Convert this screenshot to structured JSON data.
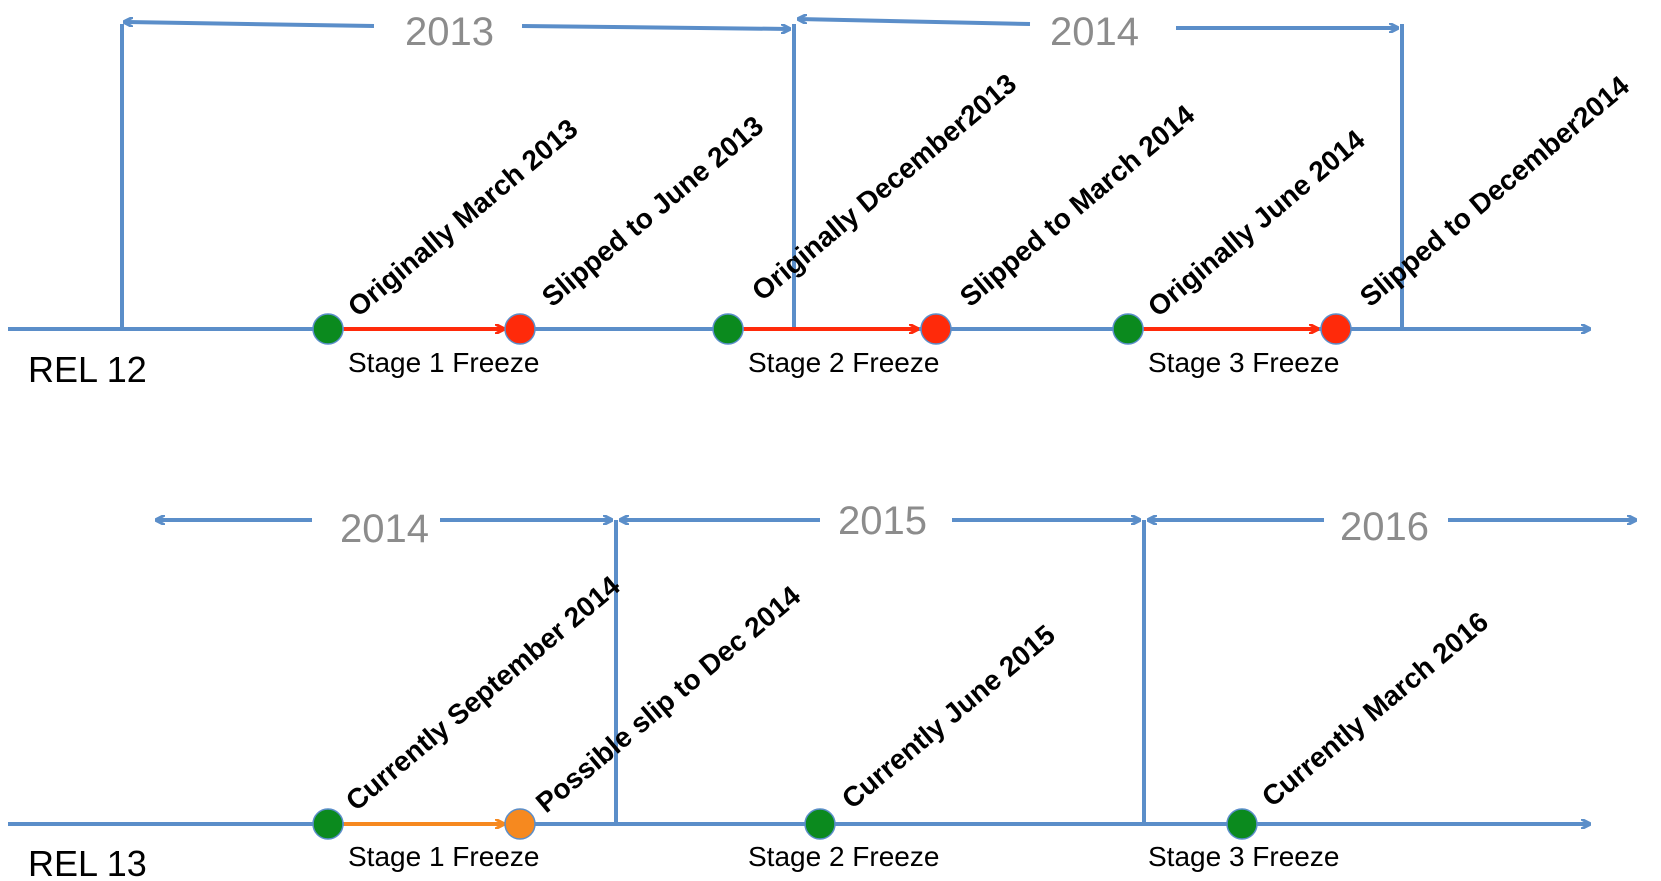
{
  "colors": {
    "line": "#5b8ec9",
    "green": "#0b8a1e",
    "red": "#ff2a0a",
    "orange": "#f6891f",
    "year_text": "#8c8c8c"
  },
  "rel12": {
    "label": "REL 12",
    "years": [
      "2013",
      "2014"
    ],
    "stages": [
      "Stage 1 Freeze",
      "Stage 2 Freeze",
      "Stage 3 Freeze"
    ],
    "notes": [
      "Originally March 2013",
      "Slipped to June 2013",
      "Originally December2013",
      "Slipped to March 2014",
      "Originally June 2014",
      "Slipped to December2014"
    ]
  },
  "rel13": {
    "label": "REL 13",
    "years": [
      "2014",
      "2015",
      "2016"
    ],
    "stages": [
      "Stage 1 Freeze",
      "Stage 2 Freeze",
      "Stage 3 Freeze"
    ],
    "notes": [
      "Currently September 2014",
      "Possible slip to Dec 2014",
      "Currently June 2015",
      "Currently March 2016"
    ]
  }
}
